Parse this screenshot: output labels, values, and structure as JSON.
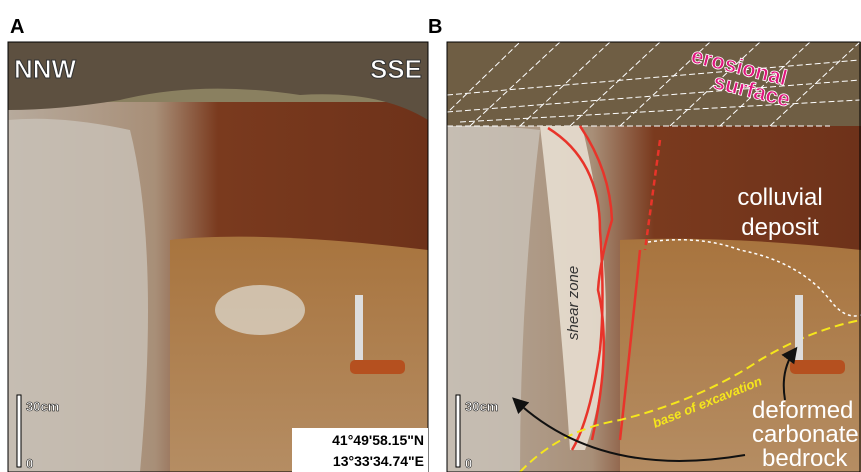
{
  "panels": [
    {
      "label": "A",
      "left_direction": "NNW",
      "right_direction": "SSE",
      "scale_labels": [
        "30cm",
        "0"
      ],
      "coordinates": [
        "41°49'58.15\"N",
        "13°33'34.74\"E"
      ]
    },
    {
      "label": "B",
      "erosional_surface": [
        "erosional",
        "surface"
      ],
      "colluvial_deposit": [
        "colluvial",
        "deposit"
      ],
      "shear_zone": "shear zone",
      "base_of_excavation": "base of excavation",
      "deformed_bedrock": [
        "deformed",
        "carbonate",
        "bedrock"
      ],
      "scale_labels": [
        "30cm",
        "0"
      ]
    }
  ]
}
